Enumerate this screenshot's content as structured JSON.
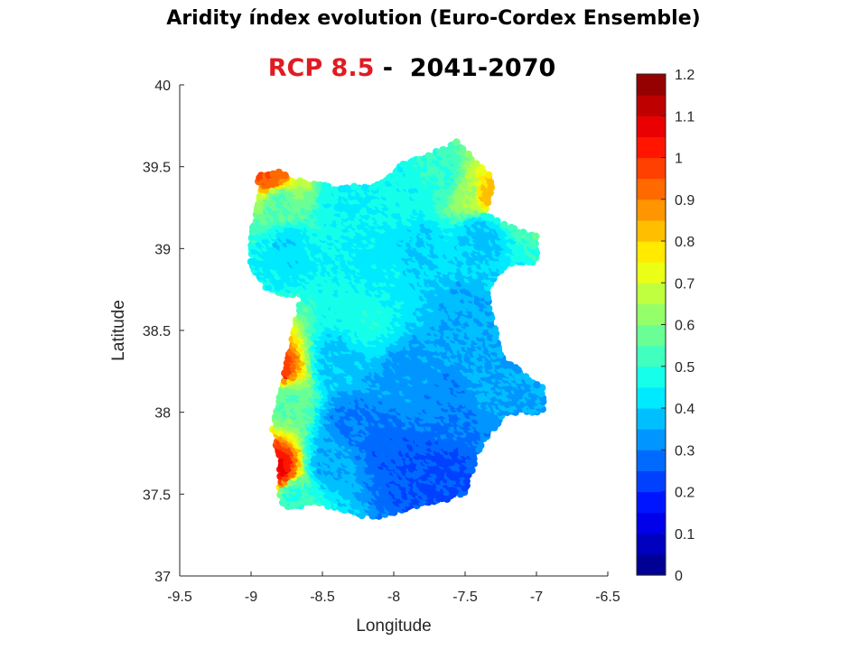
{
  "title": "Aridity índex evolution (Euro-Cordex Ensemble)",
  "subtitle": {
    "scenario": "RCP 8.5",
    "separator": " -  ",
    "period": "2041-2070"
  },
  "chart_data": {
    "type": "scatter",
    "xlabel": "Longitude",
    "ylabel": "Latitude",
    "xlim": [
      -9.5,
      -6.5
    ],
    "ylim": [
      37,
      40
    ],
    "xticks": [
      "-9.5",
      "-9",
      "-8.5",
      "-8",
      "-7.5",
      "-7",
      "-6.5"
    ],
    "yticks": [
      "37",
      "37.5",
      "38",
      "38.5",
      "39",
      "39.5",
      "40"
    ],
    "colorbar": {
      "range": [
        0,
        1.2
      ],
      "step": 0.05,
      "colormap": "jet",
      "ticks": [
        "0",
        "0.1",
        "0.2",
        "0.3",
        "0.4",
        "0.5",
        "0.6",
        "0.7",
        "0.8",
        "0.9",
        "1",
        "1.1",
        "1.2"
      ]
    },
    "grid": false,
    "points_note": "",
    "regions": [
      {
        "lon": -8.05,
        "lat": 37.8,
        "value": 0.27
      },
      {
        "lon": -7.85,
        "lat": 37.65,
        "value": 0.25
      },
      {
        "lon": -7.7,
        "lat": 37.6,
        "value": 0.24
      },
      {
        "lon": -8.3,
        "lat": 37.95,
        "value": 0.3
      },
      {
        "lon": -7.6,
        "lat": 38.05,
        "value": 0.31
      },
      {
        "lon": -7.9,
        "lat": 38.2,
        "value": 0.33
      },
      {
        "lon": -7.3,
        "lat": 38.2,
        "value": 0.35
      },
      {
        "lon": -8.45,
        "lat": 37.7,
        "value": 0.36
      },
      {
        "lon": -8.4,
        "lat": 38.3,
        "value": 0.38
      },
      {
        "lon": -7.5,
        "lat": 38.6,
        "value": 0.36
      },
      {
        "lon": -7.8,
        "lat": 39.0,
        "value": 0.4
      },
      {
        "lon": -7.4,
        "lat": 39.1,
        "value": 0.38
      },
      {
        "lon": -8.1,
        "lat": 38.9,
        "value": 0.43
      },
      {
        "lon": -8.3,
        "lat": 39.3,
        "value": 0.45
      },
      {
        "lon": -8.75,
        "lat": 39.0,
        "value": 0.42
      },
      {
        "lon": -8.2,
        "lat": 38.6,
        "value": 0.48
      },
      {
        "lon": -7.65,
        "lat": 39.45,
        "value": 0.5
      },
      {
        "lon": -7.9,
        "lat": 39.35,
        "value": 0.47
      },
      {
        "lon": -8.7,
        "lat": 37.5,
        "value": 0.5
      },
      {
        "lon": -8.75,
        "lat": 38.1,
        "value": 0.55
      },
      {
        "lon": -8.8,
        "lat": 39.3,
        "value": 0.55
      },
      {
        "lon": -7.45,
        "lat": 39.35,
        "value": 0.65
      },
      {
        "lon": -7.35,
        "lat": 39.35,
        "value": 0.82
      },
      {
        "lon": -8.85,
        "lat": 39.45,
        "value": 0.95
      },
      {
        "lon": -8.8,
        "lat": 37.65,
        "value": 1.05
      },
      {
        "lon": -8.8,
        "lat": 38.25,
        "value": 1.0
      }
    ]
  }
}
